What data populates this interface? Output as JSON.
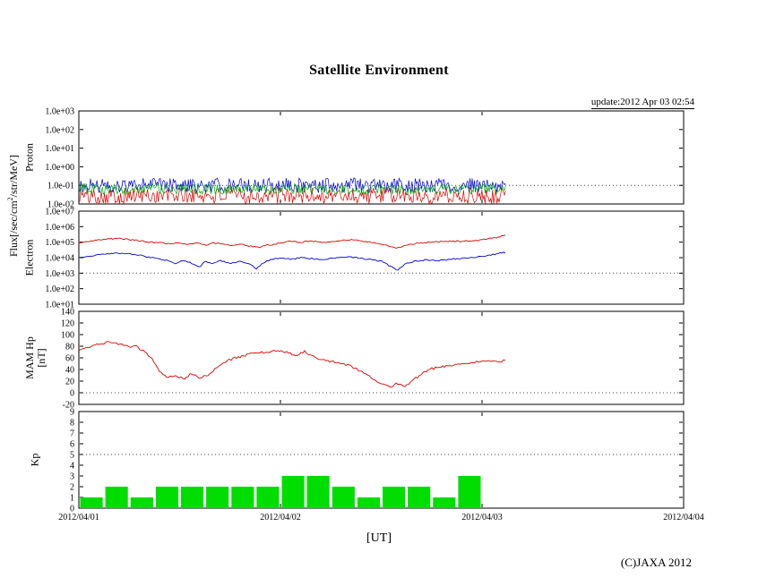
{
  "header": {
    "title": "Satellite Environment",
    "update": "update:2012 Apr 03 02:54"
  },
  "footer": {
    "copyright": "(C)JAXA 2012"
  },
  "axes": {
    "flux_label_prefix": "Flux[/sec/cm",
    "flux_label_sup": "2",
    "flux_label_suffix": "/str/MeV]",
    "proton_label": "Proton",
    "electron_label": "Electron",
    "hp_label_line1": "MAM Hp",
    "hp_label_line2": "[nT]",
    "kp_label": "Kp",
    "x_label": "[UT]"
  },
  "x_axis": {
    "tick_labels": [
      "2012/04/01",
      "2012/04/02",
      "2012/04/03",
      "2012/04/04"
    ],
    "span_days": 3
  },
  "chart_data": [
    {
      "id": "proton",
      "type": "noisy-band",
      "panel_label": "Proton",
      "ytick_labels": [
        "1.0e+03",
        "1.0e+02",
        "1.0e+01",
        "1.0e+00",
        "1.0e-01",
        "1.0e-02"
      ],
      "ytick_values": [
        3,
        2,
        1,
        0,
        -1,
        -2
      ],
      "y_range": [
        -2,
        3
      ],
      "y_scale": "log10",
      "dotted_gridline": -1,
      "x_data_end_days": 2.12,
      "series": [
        {
          "name": "proton-red",
          "color": "#dd0000",
          "log_center": -1.55,
          "log_spread": 0.45
        },
        {
          "name": "proton-blue",
          "color": "#0000dd",
          "log_center": -1.0,
          "log_spread": 0.4
        },
        {
          "name": "proton-green",
          "color": "#00b000",
          "log_center": -1.2,
          "log_spread": 0.28
        }
      ]
    },
    {
      "id": "electron",
      "type": "line",
      "panel_label": "Electron",
      "ytick_labels": [
        "1.0e+07",
        "1.0e+06",
        "1.0e+05",
        "1.0e+04",
        "1.0e+03",
        "1.0e+02",
        "1.0e+01"
      ],
      "ytick_values": [
        7,
        6,
        5,
        4,
        3,
        2,
        1
      ],
      "y_range": [
        1,
        7
      ],
      "y_scale": "log10",
      "dotted_gridline": 3,
      "series": [
        {
          "name": "electron-high",
          "color": "#dd0000",
          "x": [
            0.0,
            0.05,
            0.1,
            0.15,
            0.2,
            0.25,
            0.3,
            0.35,
            0.4,
            0.45,
            0.5,
            0.55,
            0.6,
            0.63,
            0.66,
            0.7,
            0.75,
            0.8,
            0.85,
            0.9,
            0.93,
            0.95,
            1.0,
            1.05,
            1.1,
            1.15,
            1.2,
            1.25,
            1.3,
            1.35,
            1.4,
            1.45,
            1.5,
            1.55,
            1.58,
            1.62,
            1.67,
            1.72,
            1.78,
            1.85,
            1.9,
            1.95,
            2.0,
            2.05,
            2.12
          ],
          "y": [
            90000,
            110000,
            140000,
            160000,
            170000,
            150000,
            120000,
            100000,
            90000,
            80000,
            90000,
            75000,
            85000,
            60000,
            90000,
            80000,
            65000,
            75000,
            55000,
            45000,
            70000,
            60000,
            90000,
            110000,
            100000,
            115000,
            95000,
            110000,
            125000,
            140000,
            120000,
            100000,
            80000,
            50000,
            40000,
            60000,
            80000,
            95000,
            105000,
            115000,
            110000,
            125000,
            140000,
            180000,
            280000
          ]
        },
        {
          "name": "electron-low",
          "color": "#0000dd",
          "x": [
            0.0,
            0.05,
            0.1,
            0.15,
            0.2,
            0.25,
            0.3,
            0.35,
            0.4,
            0.45,
            0.48,
            0.52,
            0.55,
            0.6,
            0.63,
            0.66,
            0.7,
            0.75,
            0.8,
            0.85,
            0.88,
            0.92,
            0.95,
            1.0,
            1.05,
            1.1,
            1.15,
            1.2,
            1.25,
            1.3,
            1.35,
            1.4,
            1.45,
            1.5,
            1.55,
            1.58,
            1.62,
            1.67,
            1.72,
            1.78,
            1.85,
            1.9,
            1.95,
            2.0,
            2.05,
            2.12
          ],
          "y": [
            10000,
            12000,
            15000,
            18000,
            20000,
            17000,
            14000,
            11000,
            8000,
            6000,
            4000,
            7000,
            5000,
            2500,
            6000,
            4000,
            6500,
            4500,
            6000,
            4000,
            1800,
            5000,
            7000,
            10000,
            8000,
            10000,
            9000,
            7500,
            9000,
            10500,
            11000,
            9000,
            7500,
            6000,
            2500,
            1500,
            4000,
            6000,
            7000,
            6500,
            8000,
            9000,
            10000,
            12000,
            16000,
            22000
          ]
        }
      ]
    },
    {
      "id": "hp",
      "type": "line",
      "panel_label": "MAM Hp [nT]",
      "ytick_labels": [
        "140",
        "120",
        "100",
        "80",
        "60",
        "40",
        "20",
        "0",
        "-20"
      ],
      "ytick_values": [
        140,
        120,
        100,
        80,
        60,
        40,
        20,
        0,
        -20
      ],
      "y_range": [
        -20,
        140
      ],
      "y_scale": "linear",
      "dotted_gridline": 0,
      "series": [
        {
          "name": "hp",
          "color": "#dd0000",
          "x": [
            0.0,
            0.05,
            0.1,
            0.15,
            0.2,
            0.25,
            0.28,
            0.32,
            0.36,
            0.4,
            0.44,
            0.48,
            0.52,
            0.56,
            0.6,
            0.64,
            0.68,
            0.72,
            0.76,
            0.8,
            0.84,
            0.88,
            0.92,
            0.96,
            1.0,
            1.04,
            1.08,
            1.12,
            1.16,
            1.2,
            1.25,
            1.3,
            1.35,
            1.4,
            1.45,
            1.5,
            1.54,
            1.58,
            1.62,
            1.66,
            1.7,
            1.74,
            1.78,
            1.82,
            1.86,
            1.9,
            1.95,
            2.0,
            2.06,
            2.12
          ],
          "y": [
            72,
            78,
            84,
            87,
            84,
            78,
            80,
            72,
            60,
            38,
            26,
            30,
            24,
            33,
            26,
            30,
            42,
            52,
            58,
            62,
            66,
            68,
            70,
            71,
            73,
            69,
            64,
            71,
            62,
            58,
            54,
            50,
            46,
            36,
            26,
            16,
            10,
            16,
            12,
            22,
            32,
            40,
            44,
            46,
            48,
            50,
            52,
            53,
            54,
            55
          ]
        }
      ]
    },
    {
      "id": "kp",
      "type": "bar",
      "panel_label": "Kp",
      "ytick_labels": [
        "9",
        "8",
        "7",
        "6",
        "5",
        "4",
        "3",
        "2",
        "1",
        "0"
      ],
      "ytick_values": [
        9,
        8,
        7,
        6,
        5,
        4,
        3,
        2,
        1,
        0
      ],
      "y_range": [
        0,
        9
      ],
      "y_scale": "linear",
      "dotted_gridline": 5,
      "bar_color": "#00dd00",
      "bar_interval_hours": 3,
      "values": [
        1,
        2,
        1,
        2,
        2,
        2,
        2,
        2,
        3,
        3,
        2,
        1,
        2,
        2,
        1,
        3
      ]
    }
  ]
}
